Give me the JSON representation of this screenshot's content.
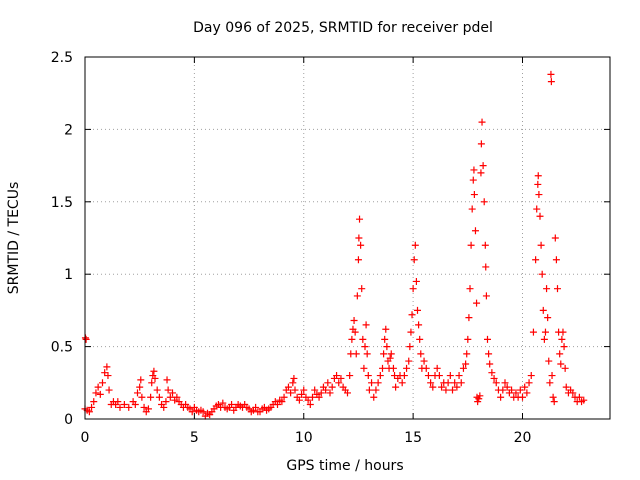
{
  "chart_data": {
    "type": "scatter",
    "title": "Day 096 of 2025, SRMTID for receiver pdel",
    "xlabel": "GPS time / hours",
    "ylabel": "SRMTID / TECUs",
    "xlim": [
      0,
      24
    ],
    "ylim": [
      0,
      2.5
    ],
    "x_ticks": [
      {
        "value": 0,
        "label": "0"
      },
      {
        "value": 5,
        "label": "5"
      },
      {
        "value": 10,
        "label": "10"
      },
      {
        "value": 15,
        "label": "15"
      },
      {
        "value": 20,
        "label": "20"
      }
    ],
    "y_ticks": [
      {
        "value": 0,
        "label": "0"
      },
      {
        "value": 0.5,
        "label": "0.5"
      },
      {
        "value": 1,
        "label": "1"
      },
      {
        "value": 1.5,
        "label": "1.5"
      },
      {
        "value": 2,
        "label": "2"
      },
      {
        "value": 2.5,
        "label": "2.5"
      }
    ],
    "grid": true,
    "marker": "+",
    "series": [
      {
        "name": "SRMTID",
        "color": "#ff0000",
        "points": [
          [
            0.0,
            0.07
          ],
          [
            0.02,
            0.56
          ],
          [
            0.05,
            0.55
          ],
          [
            0.1,
            0.06
          ],
          [
            0.2,
            0.05
          ],
          [
            0.3,
            0.08
          ],
          [
            0.4,
            0.12
          ],
          [
            0.5,
            0.18
          ],
          [
            0.6,
            0.22
          ],
          [
            0.7,
            0.17
          ],
          [
            0.8,
            0.25
          ],
          [
            0.9,
            0.32
          ],
          [
            1.0,
            0.36
          ],
          [
            1.05,
            0.3
          ],
          [
            1.1,
            0.2
          ],
          [
            1.2,
            0.1
          ],
          [
            1.3,
            0.12
          ],
          [
            1.4,
            0.1
          ],
          [
            1.5,
            0.12
          ],
          [
            1.6,
            0.08
          ],
          [
            1.8,
            0.1
          ],
          [
            2.0,
            0.08
          ],
          [
            2.2,
            0.12
          ],
          [
            2.3,
            0.1
          ],
          [
            2.4,
            0.18
          ],
          [
            2.5,
            0.22
          ],
          [
            2.55,
            0.27
          ],
          [
            2.6,
            0.15
          ],
          [
            2.7,
            0.08
          ],
          [
            2.8,
            0.05
          ],
          [
            2.9,
            0.07
          ],
          [
            3.0,
            0.15
          ],
          [
            3.05,
            0.25
          ],
          [
            3.1,
            0.3
          ],
          [
            3.15,
            0.33
          ],
          [
            3.2,
            0.28
          ],
          [
            3.3,
            0.2
          ],
          [
            3.4,
            0.15
          ],
          [
            3.5,
            0.1
          ],
          [
            3.6,
            0.08
          ],
          [
            3.7,
            0.12
          ],
          [
            3.75,
            0.27
          ],
          [
            3.8,
            0.2
          ],
          [
            3.9,
            0.15
          ],
          [
            4.0,
            0.18
          ],
          [
            4.1,
            0.13
          ],
          [
            4.2,
            0.15
          ],
          [
            4.3,
            0.12
          ],
          [
            4.4,
            0.1
          ],
          [
            4.5,
            0.08
          ],
          [
            4.6,
            0.1
          ],
          [
            4.7,
            0.08
          ],
          [
            4.8,
            0.07
          ],
          [
            4.9,
            0.05
          ],
          [
            5.0,
            0.08
          ],
          [
            5.1,
            0.06
          ],
          [
            5.2,
            0.05
          ],
          [
            5.3,
            0.06
          ],
          [
            5.4,
            0.05
          ],
          [
            5.5,
            0.02
          ],
          [
            5.6,
            0.04
          ],
          [
            5.7,
            0.03
          ],
          [
            5.8,
            0.05
          ],
          [
            5.9,
            0.07
          ],
          [
            6.0,
            0.09
          ],
          [
            6.1,
            0.1
          ],
          [
            6.2,
            0.08
          ],
          [
            6.3,
            0.11
          ],
          [
            6.4,
            0.08
          ],
          [
            6.5,
            0.07
          ],
          [
            6.6,
            0.08
          ],
          [
            6.7,
            0.1
          ],
          [
            6.8,
            0.06
          ],
          [
            6.9,
            0.08
          ],
          [
            7.0,
            0.1
          ],
          [
            7.1,
            0.09
          ],
          [
            7.2,
            0.08
          ],
          [
            7.3,
            0.1
          ],
          [
            7.4,
            0.08
          ],
          [
            7.5,
            0.07
          ],
          [
            7.6,
            0.05
          ],
          [
            7.7,
            0.06
          ],
          [
            7.8,
            0.08
          ],
          [
            7.9,
            0.05
          ],
          [
            8.0,
            0.05
          ],
          [
            8.1,
            0.07
          ],
          [
            8.2,
            0.08
          ],
          [
            8.3,
            0.06
          ],
          [
            8.4,
            0.07
          ],
          [
            8.5,
            0.08
          ],
          [
            8.6,
            0.1
          ],
          [
            8.7,
            0.12
          ],
          [
            8.8,
            0.1
          ],
          [
            8.9,
            0.13
          ],
          [
            9.0,
            0.12
          ],
          [
            9.1,
            0.15
          ],
          [
            9.2,
            0.2
          ],
          [
            9.3,
            0.22
          ],
          [
            9.4,
            0.18
          ],
          [
            9.5,
            0.25
          ],
          [
            9.55,
            0.28
          ],
          [
            9.6,
            0.2
          ],
          [
            9.7,
            0.15
          ],
          [
            9.8,
            0.13
          ],
          [
            9.9,
            0.17
          ],
          [
            10.0,
            0.2
          ],
          [
            10.1,
            0.15
          ],
          [
            10.2,
            0.13
          ],
          [
            10.3,
            0.1
          ],
          [
            10.4,
            0.15
          ],
          [
            10.5,
            0.2
          ],
          [
            10.6,
            0.17
          ],
          [
            10.7,
            0.15
          ],
          [
            10.8,
            0.18
          ],
          [
            10.9,
            0.22
          ],
          [
            11.0,
            0.2
          ],
          [
            11.1,
            0.25
          ],
          [
            11.2,
            0.18
          ],
          [
            11.3,
            0.22
          ],
          [
            11.4,
            0.28
          ],
          [
            11.5,
            0.3
          ],
          [
            11.6,
            0.25
          ],
          [
            11.7,
            0.28
          ],
          [
            11.8,
            0.22
          ],
          [
            11.9,
            0.2
          ],
          [
            12.0,
            0.18
          ],
          [
            12.1,
            0.3
          ],
          [
            12.15,
            0.45
          ],
          [
            12.2,
            0.55
          ],
          [
            12.25,
            0.62
          ],
          [
            12.3,
            0.68
          ],
          [
            12.35,
            0.6
          ],
          [
            12.4,
            0.45
          ],
          [
            12.45,
            0.85
          ],
          [
            12.5,
            1.1
          ],
          [
            12.52,
            1.25
          ],
          [
            12.55,
            1.38
          ],
          [
            12.6,
            1.2
          ],
          [
            12.65,
            0.9
          ],
          [
            12.7,
            0.55
          ],
          [
            12.75,
            0.35
          ],
          [
            12.8,
            0.5
          ],
          [
            12.85,
            0.65
          ],
          [
            12.9,
            0.45
          ],
          [
            12.95,
            0.3
          ],
          [
            13.0,
            0.2
          ],
          [
            13.1,
            0.25
          ],
          [
            13.2,
            0.15
          ],
          [
            13.3,
            0.2
          ],
          [
            13.4,
            0.25
          ],
          [
            13.5,
            0.3
          ],
          [
            13.6,
            0.35
          ],
          [
            13.65,
            0.45
          ],
          [
            13.7,
            0.55
          ],
          [
            13.75,
            0.62
          ],
          [
            13.8,
            0.5
          ],
          [
            13.85,
            0.4
          ],
          [
            13.9,
            0.35
          ],
          [
            13.95,
            0.42
          ],
          [
            14.0,
            0.45
          ],
          [
            14.1,
            0.35
          ],
          [
            14.15,
            0.3
          ],
          [
            14.2,
            0.22
          ],
          [
            14.3,
            0.28
          ],
          [
            14.4,
            0.3
          ],
          [
            14.5,
            0.25
          ],
          [
            14.6,
            0.3
          ],
          [
            14.7,
            0.35
          ],
          [
            14.8,
            0.4
          ],
          [
            14.85,
            0.5
          ],
          [
            14.9,
            0.6
          ],
          [
            14.95,
            0.72
          ],
          [
            15.0,
            0.9
          ],
          [
            15.05,
            1.1
          ],
          [
            15.1,
            1.2
          ],
          [
            15.15,
            0.95
          ],
          [
            15.2,
            0.75
          ],
          [
            15.25,
            0.65
          ],
          [
            15.3,
            0.55
          ],
          [
            15.35,
            0.45
          ],
          [
            15.4,
            0.35
          ],
          [
            15.5,
            0.4
          ],
          [
            15.6,
            0.35
          ],
          [
            15.7,
            0.3
          ],
          [
            15.8,
            0.25
          ],
          [
            15.9,
            0.22
          ],
          [
            16.0,
            0.3
          ],
          [
            16.1,
            0.35
          ],
          [
            16.2,
            0.3
          ],
          [
            16.3,
            0.22
          ],
          [
            16.4,
            0.25
          ],
          [
            16.5,
            0.2
          ],
          [
            16.6,
            0.25
          ],
          [
            16.7,
            0.3
          ],
          [
            16.8,
            0.2
          ],
          [
            16.9,
            0.25
          ],
          [
            17.0,
            0.22
          ],
          [
            17.1,
            0.3
          ],
          [
            17.2,
            0.25
          ],
          [
            17.3,
            0.35
          ],
          [
            17.4,
            0.38
          ],
          [
            17.45,
            0.45
          ],
          [
            17.5,
            0.55
          ],
          [
            17.55,
            0.7
          ],
          [
            17.6,
            0.9
          ],
          [
            17.65,
            1.2
          ],
          [
            17.7,
            1.45
          ],
          [
            17.75,
            1.65
          ],
          [
            17.78,
            1.72
          ],
          [
            17.8,
            1.55
          ],
          [
            17.85,
            1.3
          ],
          [
            17.9,
            0.8
          ],
          [
            17.92,
            0.15
          ],
          [
            17.95,
            0.12
          ],
          [
            18.0,
            0.14
          ],
          [
            18.05,
            0.16
          ],
          [
            18.1,
            1.7
          ],
          [
            18.12,
            1.9
          ],
          [
            18.15,
            2.05
          ],
          [
            18.2,
            1.75
          ],
          [
            18.25,
            1.5
          ],
          [
            18.3,
            1.2
          ],
          [
            18.32,
            1.05
          ],
          [
            18.35,
            0.85
          ],
          [
            18.4,
            0.55
          ],
          [
            18.45,
            0.45
          ],
          [
            18.5,
            0.38
          ],
          [
            18.6,
            0.32
          ],
          [
            18.7,
            0.28
          ],
          [
            18.8,
            0.25
          ],
          [
            18.9,
            0.2
          ],
          [
            19.0,
            0.15
          ],
          [
            19.1,
            0.2
          ],
          [
            19.2,
            0.25
          ],
          [
            19.3,
            0.22
          ],
          [
            19.4,
            0.18
          ],
          [
            19.5,
            0.2
          ],
          [
            19.6,
            0.15
          ],
          [
            19.7,
            0.18
          ],
          [
            19.8,
            0.15
          ],
          [
            19.9,
            0.2
          ],
          [
            20.0,
            0.15
          ],
          [
            20.1,
            0.22
          ],
          [
            20.2,
            0.18
          ],
          [
            20.3,
            0.25
          ],
          [
            20.4,
            0.3
          ],
          [
            20.5,
            0.6
          ],
          [
            20.6,
            1.1
          ],
          [
            20.65,
            1.45
          ],
          [
            20.7,
            1.62
          ],
          [
            20.72,
            1.68
          ],
          [
            20.75,
            1.55
          ],
          [
            20.8,
            1.4
          ],
          [
            20.85,
            1.2
          ],
          [
            20.9,
            1.0
          ],
          [
            20.95,
            0.75
          ],
          [
            21.0,
            0.55
          ],
          [
            21.05,
            0.6
          ],
          [
            21.1,
            0.9
          ],
          [
            21.15,
            0.7
          ],
          [
            21.2,
            0.4
          ],
          [
            21.25,
            0.25
          ],
          [
            21.3,
            2.38
          ],
          [
            21.32,
            2.33
          ],
          [
            21.35,
            0.3
          ],
          [
            21.4,
            0.15
          ],
          [
            21.45,
            0.12
          ],
          [
            21.5,
            1.25
          ],
          [
            21.55,
            1.1
          ],
          [
            21.6,
            0.9
          ],
          [
            21.65,
            0.6
          ],
          [
            21.7,
            0.45
          ],
          [
            21.75,
            0.38
          ],
          [
            21.8,
            0.55
          ],
          [
            21.85,
            0.6
          ],
          [
            21.9,
            0.5
          ],
          [
            21.95,
            0.35
          ],
          [
            22.0,
            0.22
          ],
          [
            22.1,
            0.18
          ],
          [
            22.2,
            0.2
          ],
          [
            22.3,
            0.18
          ],
          [
            22.4,
            0.15
          ],
          [
            22.5,
            0.12
          ],
          [
            22.6,
            0.15
          ],
          [
            22.7,
            0.12
          ],
          [
            22.8,
            0.13
          ]
        ]
      }
    ]
  }
}
